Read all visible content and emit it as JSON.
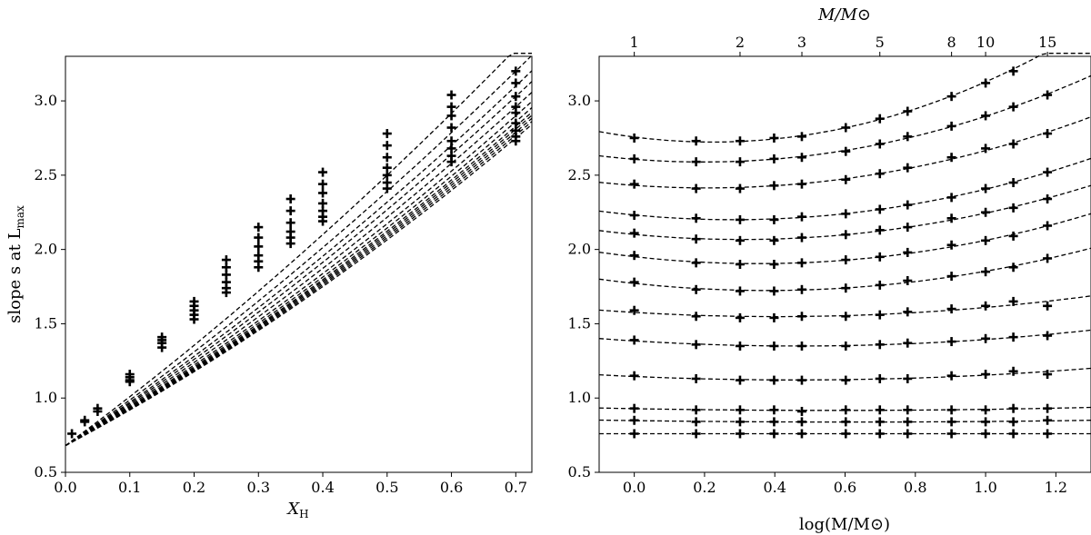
{
  "chart_data": [
    {
      "type": "line",
      "title": "",
      "xlabel": "X",
      "xlabel_sub": "H",
      "ylabel": "slope s at L",
      "ylabel_sub": "max",
      "xlim": [
        0.0,
        0.725
      ],
      "ylim": [
        0.5,
        3.3
      ],
      "xticks": [
        0.0,
        0.1,
        0.2,
        0.3,
        0.4,
        0.5,
        0.6,
        0.7
      ],
      "xtick_labels": [
        "0.0",
        "0.1",
        "0.2",
        "0.3",
        "0.4",
        "0.5",
        "0.6",
        "0.7"
      ],
      "yticks": [
        0.5,
        1.0,
        1.5,
        2.0,
        2.5,
        3.0
      ],
      "ytick_labels": [
        "0.5",
        "1.0",
        "1.5",
        "2.0",
        "2.5",
        "3.0"
      ],
      "grid": false,
      "curve_intercept": 0.68,
      "marker_x": [
        0.01,
        0.03,
        0.05,
        0.1,
        0.15,
        0.2,
        0.25,
        0.3,
        0.35,
        0.4,
        0.5,
        0.6,
        0.7
      ],
      "curve_values_at_x07": [
        3.35,
        3.2,
        3.1,
        3.03,
        2.96,
        2.9,
        2.86,
        2.83,
        2.81,
        2.79,
        2.77,
        2.75
      ],
      "points": [
        [
          0.01,
          0.76
        ],
        [
          0.03,
          0.84
        ],
        [
          0.03,
          0.85
        ],
        [
          0.05,
          0.91
        ],
        [
          0.05,
          0.93
        ],
        [
          0.1,
          1.12
        ],
        [
          0.1,
          1.14
        ],
        [
          0.1,
          1.16
        ],
        [
          0.1,
          1.11
        ],
        [
          0.15,
          1.34
        ],
        [
          0.15,
          1.37
        ],
        [
          0.15,
          1.39
        ],
        [
          0.15,
          1.41
        ],
        [
          0.2,
          1.53
        ],
        [
          0.2,
          1.56
        ],
        [
          0.2,
          1.59
        ],
        [
          0.2,
          1.62
        ],
        [
          0.2,
          1.65
        ],
        [
          0.25,
          1.71
        ],
        [
          0.25,
          1.74
        ],
        [
          0.25,
          1.78
        ],
        [
          0.25,
          1.83
        ],
        [
          0.25,
          1.88
        ],
        [
          0.25,
          1.93
        ],
        [
          0.3,
          1.88
        ],
        [
          0.3,
          1.92
        ],
        [
          0.3,
          1.96
        ],
        [
          0.3,
          2.02
        ],
        [
          0.3,
          2.08
        ],
        [
          0.3,
          2.15
        ],
        [
          0.35,
          2.04
        ],
        [
          0.35,
          2.08
        ],
        [
          0.35,
          2.12
        ],
        [
          0.35,
          2.18
        ],
        [
          0.35,
          2.26
        ],
        [
          0.35,
          2.34
        ],
        [
          0.4,
          2.19
        ],
        [
          0.4,
          2.22
        ],
        [
          0.4,
          2.26
        ],
        [
          0.4,
          2.31
        ],
        [
          0.4,
          2.38
        ],
        [
          0.4,
          2.44
        ],
        [
          0.4,
          2.52
        ],
        [
          0.5,
          2.41
        ],
        [
          0.5,
          2.45
        ],
        [
          0.5,
          2.5
        ],
        [
          0.5,
          2.55
        ],
        [
          0.5,
          2.62
        ],
        [
          0.5,
          2.7
        ],
        [
          0.5,
          2.78
        ],
        [
          0.6,
          2.59
        ],
        [
          0.6,
          2.63
        ],
        [
          0.6,
          2.68
        ],
        [
          0.6,
          2.73
        ],
        [
          0.6,
          2.82
        ],
        [
          0.6,
          2.9
        ],
        [
          0.6,
          2.96
        ],
        [
          0.6,
          3.04
        ],
        [
          0.7,
          2.73
        ],
        [
          0.7,
          2.76
        ],
        [
          0.7,
          2.8
        ],
        [
          0.7,
          2.85
        ],
        [
          0.7,
          2.92
        ],
        [
          0.7,
          2.96
        ],
        [
          0.7,
          3.03
        ],
        [
          0.7,
          3.12
        ],
        [
          0.7,
          3.2
        ]
      ]
    },
    {
      "type": "line",
      "title": "",
      "xlabel": "log(M/M⊙)",
      "top_xlabel": "M/M⊙",
      "ylabel": "",
      "xlim": [
        -0.1,
        1.3
      ],
      "ylim": [
        0.5,
        3.3
      ],
      "xticks": [
        0.0,
        0.2,
        0.4,
        0.6,
        0.8,
        1.0,
        1.2
      ],
      "xtick_labels": [
        "0.0",
        "0.2",
        "0.4",
        "0.6",
        "0.8",
        "1.0",
        "1.2"
      ],
      "yticks": [
        0.5,
        1.0,
        1.5,
        2.0,
        2.5,
        3.0
      ],
      "ytick_labels": [
        "0.5",
        "1.0",
        "1.5",
        "2.0",
        "2.5",
        "3.0"
      ],
      "top_ticks": [
        1,
        2,
        3,
        5,
        8,
        10,
        15
      ],
      "top_tick_labels": [
        "1",
        "2",
        "3",
        "5",
        "8",
        "10",
        "15"
      ],
      "grid": false,
      "marker_logM": [
        0.0,
        0.176,
        0.301,
        0.398,
        0.477,
        0.602,
        0.699,
        0.778,
        0.903,
        1.0,
        1.079,
        1.176
      ],
      "series": [
        {
          "values": [
            2.75,
            2.73,
            2.73,
            2.75,
            2.76,
            2.82,
            2.88,
            2.93,
            3.03,
            3.12,
            3.2,
            3.35
          ]
        },
        {
          "values": [
            2.61,
            2.59,
            2.59,
            2.61,
            2.62,
            2.66,
            2.71,
            2.76,
            2.83,
            2.9,
            2.96,
            3.04
          ]
        },
        {
          "values": [
            2.44,
            2.41,
            2.41,
            2.43,
            2.44,
            2.47,
            2.51,
            2.55,
            2.62,
            2.68,
            2.71,
            2.78
          ]
        },
        {
          "values": [
            2.23,
            2.21,
            2.2,
            2.2,
            2.22,
            2.24,
            2.27,
            2.3,
            2.35,
            2.41,
            2.45,
            2.52
          ]
        },
        {
          "values": [
            2.11,
            2.07,
            2.06,
            2.06,
            2.08,
            2.1,
            2.13,
            2.15,
            2.21,
            2.25,
            2.28,
            2.34
          ]
        },
        {
          "values": [
            1.96,
            1.91,
            1.9,
            1.9,
            1.91,
            1.93,
            1.95,
            1.98,
            2.03,
            2.06,
            2.09,
            2.16
          ]
        },
        {
          "values": [
            1.78,
            1.73,
            1.72,
            1.72,
            1.73,
            1.74,
            1.76,
            1.79,
            1.82,
            1.85,
            1.88,
            1.94
          ]
        },
        {
          "values": [
            1.59,
            1.55,
            1.54,
            1.54,
            1.55,
            1.55,
            1.56,
            1.58,
            1.6,
            1.62,
            1.65,
            1.62
          ]
        },
        {
          "values": [
            1.39,
            1.36,
            1.35,
            1.35,
            1.35,
            1.35,
            1.36,
            1.37,
            1.38,
            1.4,
            1.41,
            1.42
          ]
        },
        {
          "values": [
            1.15,
            1.13,
            1.12,
            1.12,
            1.12,
            1.12,
            1.13,
            1.13,
            1.15,
            1.16,
            1.18,
            1.16
          ]
        },
        {
          "values": [
            0.93,
            0.92,
            0.92,
            0.92,
            0.91,
            0.92,
            0.92,
            0.92,
            0.92,
            0.92,
            0.93,
            0.93
          ]
        },
        {
          "values": [
            0.85,
            0.84,
            0.84,
            0.84,
            0.84,
            0.84,
            0.84,
            0.84,
            0.84,
            0.84,
            0.84,
            0.85
          ]
        },
        {
          "values": [
            0.76,
            0.76,
            0.76,
            0.76,
            0.76,
            0.76,
            0.76,
            0.76,
            0.76,
            0.76,
            0.76,
            0.76
          ]
        }
      ]
    }
  ]
}
